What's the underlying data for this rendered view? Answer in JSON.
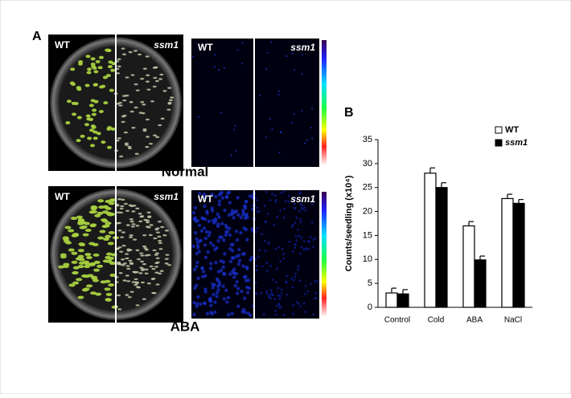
{
  "panel_a": {
    "label": "A",
    "plate_labels": [
      "WT",
      "ssm1"
    ],
    "conditions": [
      "Normal",
      "ABA"
    ]
  },
  "chart_data": {
    "type": "bar",
    "panel_label": "B",
    "y_label": "Counts/seedling (x10⁴)",
    "categories": [
      "Control",
      "Cold",
      "ABA",
      "NaCl"
    ],
    "series": [
      {
        "name": "WT",
        "color": "#ffffff",
        "values": [
          3,
          28,
          17,
          22.7
        ],
        "errors": [
          1,
          1.1,
          0.9,
          0.9
        ]
      },
      {
        "name": "ssm1",
        "color": "#000000",
        "values": [
          2.8,
          25,
          9.9,
          21.7
        ],
        "errors": [
          0.9,
          1,
          0.8,
          0.8
        ]
      }
    ],
    "ylim": [
      0,
      35
    ],
    "yticks": [
      0,
      5,
      10,
      15,
      20,
      25,
      30,
      35
    ],
    "legend": "top-right"
  }
}
